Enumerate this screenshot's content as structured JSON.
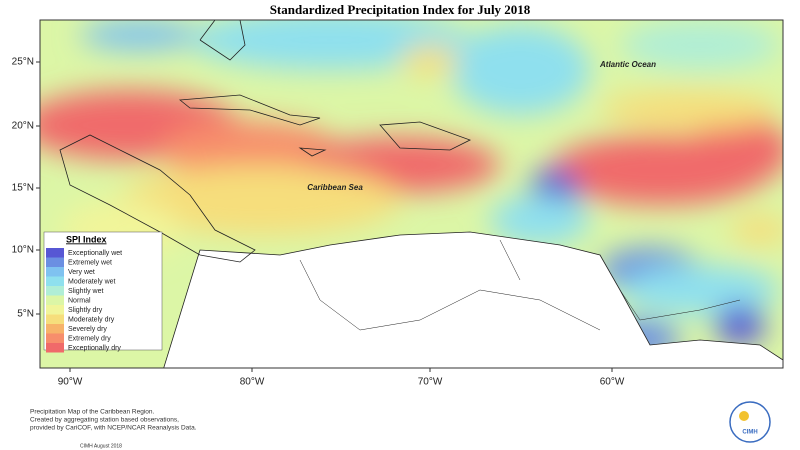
{
  "header": {
    "title": "Standardized Precipitation Index for July 2018"
  },
  "map": {
    "lon_labels": [
      "90°W",
      "80°W",
      "70°W",
      "60°W"
    ],
    "lat_labels": [
      "25°N",
      "20°N",
      "15°N",
      "10°N",
      "5°N"
    ],
    "places": [
      "Atlantic Ocean",
      "Caribbean Sea"
    ]
  },
  "legend": {
    "title": "SPI Index",
    "items": [
      {
        "label": "Exceptionally wet",
        "color": "#5757d4"
      },
      {
        "label": "Extremely wet",
        "color": "#6b8fe2"
      },
      {
        "label": "Very wet",
        "color": "#7fc2f0"
      },
      {
        "label": "Moderately wet",
        "color": "#8fe0ee"
      },
      {
        "label": "Slightly wet",
        "color": "#b0eed6"
      },
      {
        "label": "Normal",
        "color": "#dcf6a6"
      },
      {
        "label": "Slightly dry",
        "color": "#f1f59a"
      },
      {
        "label": "Moderately dry",
        "color": "#f6de7c"
      },
      {
        "label": "Severely dry",
        "color": "#f7b36a"
      },
      {
        "label": "Extremely dry",
        "color": "#f78e6c"
      },
      {
        "label": "Exceptionally dry",
        "color": "#f06a6a"
      }
    ]
  },
  "caption": [
    "Precipitation Map of the Caribbean Region.",
    "Created by aggregating station based observations,",
    "provided by CariCOF, with NCEP/NCAR Reanalysis Data.",
    "CIMH August 2018"
  ],
  "logo": {
    "text": "CIMH"
  }
}
